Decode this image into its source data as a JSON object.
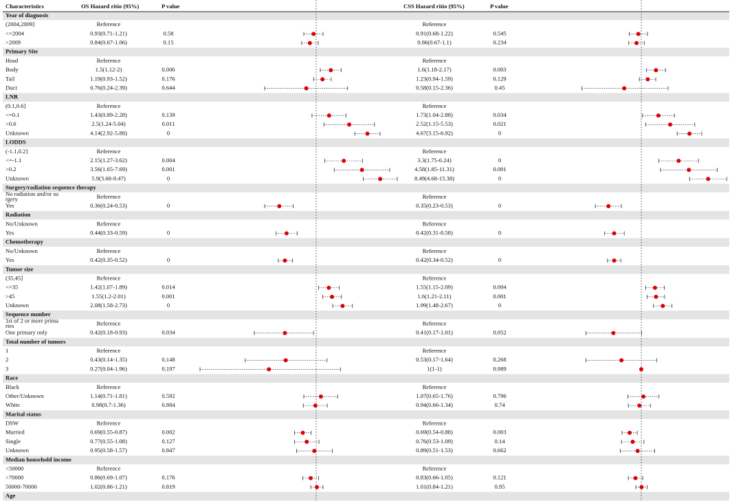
{
  "header": {
    "characteristics": "Characteristics",
    "os": "OS Hazard ritio (95%)",
    "os_p": "P value",
    "css": "CSS Hazard ritio (95%)",
    "css_p": "P value"
  },
  "plots": {
    "log_scale": true,
    "reference": 1,
    "point_color": "#e00000"
  },
  "rows": [
    {
      "section": "Year of diagnosis"
    },
    {
      "label": [
        "(2004,2009]"
      ],
      "os": {
        "text": "Reference"
      },
      "css": {
        "text": "Reference"
      }
    },
    {
      "label": [
        "<=2004"
      ],
      "os": {
        "text": "0.93(0.71-1.21)",
        "hr": 0.93,
        "lo": 0.71,
        "hi": 1.21,
        "p": 0.58
      },
      "css": {
        "text": "0.91(0.68-1.22)",
        "hr": 0.91,
        "lo": 0.68,
        "hi": 1.22,
        "p": 0.545
      }
    },
    {
      "label": [
        ">2009"
      ],
      "os": {
        "text": "0.84(0.67-1.06)",
        "hr": 0.84,
        "lo": 0.67,
        "hi": 1.06,
        "p": 0.15
      },
      "css": {
        "text": "0.86(0.67-1.1)",
        "hr": 0.86,
        "lo": 0.67,
        "hi": 1.1,
        "p": 0.234
      }
    },
    {
      "section": "Primary Site"
    },
    {
      "label": [
        "Head"
      ],
      "os": {
        "text": "Reference"
      },
      "css": {
        "text": "Reference"
      }
    },
    {
      "label": [
        "Body"
      ],
      "os": {
        "text": "1.5(1.12-2)",
        "hr": 1.5,
        "lo": 1.12,
        "hi": 2,
        "p": 0.006
      },
      "css": {
        "text": "1.6(1.18-2.17)",
        "hr": 1.6,
        "lo": 1.18,
        "hi": 2.17,
        "p": 0.003
      }
    },
    {
      "label": [
        "Tail"
      ],
      "os": {
        "text": "1.19(0.93-1.52)",
        "hr": 1.19,
        "lo": 0.93,
        "hi": 1.52,
        "p": 0.176
      },
      "css": {
        "text": "1.23(0.94-1.59)",
        "hr": 1.23,
        "lo": 0.94,
        "hi": 1.59,
        "p": 0.129
      }
    },
    {
      "label": [
        "Duct"
      ],
      "os": {
        "text": "0.76(0.24-2.39)",
        "hr": 0.76,
        "lo": 0.24,
        "hi": 2.39,
        "p": 0.644
      },
      "css": {
        "text": "0.58(0.15-2.36)",
        "hr": 0.58,
        "lo": 0.15,
        "hi": 2.36,
        "p": 0.45
      }
    },
    {
      "section": "LNR"
    },
    {
      "label": [
        "(0.1,0.6]"
      ],
      "os": {
        "text": "Reference"
      },
      "css": {
        "text": "Reference"
      }
    },
    {
      "label": [
        "<=0.1"
      ],
      "os": {
        "text": "1.43(0.89-2.28)",
        "hr": 1.43,
        "lo": 0.89,
        "hi": 2.28,
        "p": 0.139
      },
      "css": {
        "text": "1.73(1.04-2.88)",
        "hr": 1.73,
        "lo": 1.04,
        "hi": 2.88,
        "p": 0.034
      }
    },
    {
      "label": [
        ">0.6"
      ],
      "os": {
        "text": "2.5(1.24-5.04)",
        "hr": 2.5,
        "lo": 1.24,
        "hi": 5.04,
        "p": 0.011
      },
      "css": {
        "text": "2.52(1.15-5.53)",
        "hr": 2.52,
        "lo": 1.15,
        "hi": 5.53,
        "p": 0.021
      }
    },
    {
      "label": [
        "Unknown"
      ],
      "os": {
        "text": "4.14(2.92-5.88)",
        "hr": 4.14,
        "lo": 2.92,
        "hi": 5.88,
        "p": 0
      },
      "css": {
        "text": "4.67(3.15-6.92)",
        "hr": 4.67,
        "lo": 3.15,
        "hi": 6.92,
        "p": 0
      }
    },
    {
      "section": "LODDS"
    },
    {
      "label": [
        "(-1.1,0.2]"
      ],
      "os": {
        "text": "Reference"
      },
      "css": {
        "text": "Reference"
      }
    },
    {
      "label": [
        "<=-1.1"
      ],
      "os": {
        "text": "2.15(1.27-3.62)",
        "hr": 2.15,
        "lo": 1.27,
        "hi": 3.62,
        "p": 0.004
      },
      "css": {
        "text": "3.3(1.75-6.24)",
        "hr": 3.3,
        "lo": 1.75,
        "hi": 6.24,
        "p": 0
      }
    },
    {
      "label": [
        ">0.2"
      ],
      "os": {
        "text": "3.56(1.65-7.69)",
        "hr": 3.56,
        "lo": 1.65,
        "hi": 7.69,
        "p": 0.001
      },
      "css": {
        "text": "4.58(1.85-11.31)",
        "hr": 4.58,
        "lo": 1.85,
        "hi": 11.31,
        "p": 0.001
      }
    },
    {
      "label": [
        "Unknown"
      ],
      "os": {
        "text": "5.9(3.68-9.47)",
        "hr": 5.9,
        "lo": 3.68,
        "hi": 9.47,
        "p": 0
      },
      "css": {
        "text": "8.49(4.68-15.38)",
        "hr": 8.49,
        "lo": 4.68,
        "hi": 15.38,
        "p": 0
      }
    },
    {
      "section": "Surgery/radiation sequence therapy"
    },
    {
      "label": [
        "No radiation and/or su",
        "rgery"
      ],
      "os": {
        "text": "Reference"
      },
      "css": {
        "text": "Reference"
      }
    },
    {
      "label": [
        "Yes"
      ],
      "os": {
        "text": "0.36(0.24-0.53)",
        "hr": 0.36,
        "lo": 0.24,
        "hi": 0.53,
        "p": 0
      },
      "css": {
        "text": "0.35(0.23-0.53)",
        "hr": 0.35,
        "lo": 0.23,
        "hi": 0.53,
        "p": 0
      }
    },
    {
      "section": "Radiation"
    },
    {
      "label": [
        "No/Unknown"
      ],
      "os": {
        "text": "Reference"
      },
      "css": {
        "text": "Reference"
      }
    },
    {
      "label": [
        "Yes"
      ],
      "os": {
        "text": "0.44(0.33-0.59)",
        "hr": 0.44,
        "lo": 0.33,
        "hi": 0.59,
        "p": 0
      },
      "css": {
        "text": "0.42(0.31-0.58)",
        "hr": 0.42,
        "lo": 0.31,
        "hi": 0.58,
        "p": 0
      }
    },
    {
      "section": "Chemotherapy"
    },
    {
      "label": [
        "No/Unknown"
      ],
      "os": {
        "text": "Reference"
      },
      "css": {
        "text": "Reference"
      }
    },
    {
      "label": [
        "Yes"
      ],
      "os": {
        "text": "0.42(0.35-0.52)",
        "hr": 0.42,
        "lo": 0.35,
        "hi": 0.52,
        "p": 0
      },
      "css": {
        "text": "0.42(0.34-0.52)",
        "hr": 0.42,
        "lo": 0.34,
        "hi": 0.52,
        "p": 0
      }
    },
    {
      "section": "Tumor size"
    },
    {
      "label": [
        "(35,45]"
      ],
      "os": {
        "text": "Reference"
      },
      "css": {
        "text": "Reference"
      }
    },
    {
      "label": [
        "<=35"
      ],
      "os": {
        "text": "1.42(1.07-1.89)",
        "hr": 1.42,
        "lo": 1.07,
        "hi": 1.89,
        "p": 0.014
      },
      "css": {
        "text": "1.55(1.15-2.09)",
        "hr": 1.55,
        "lo": 1.15,
        "hi": 2.09,
        "p": 0.004
      }
    },
    {
      "label": [
        ">45"
      ],
      "os": {
        "text": "1.55(1.2-2.01)",
        "hr": 1.55,
        "lo": 1.2,
        "hi": 2.01,
        "p": 0.001
      },
      "css": {
        "text": "1.6(1.21-2.11)",
        "hr": 1.6,
        "lo": 1.21,
        "hi": 2.11,
        "p": 0.001
      }
    },
    {
      "label": [
        "Unknown"
      ],
      "os": {
        "text": "2.08(1.58-2.73)",
        "hr": 2.08,
        "lo": 1.58,
        "hi": 2.73,
        "p": 0
      },
      "css": {
        "text": "1.99(1.48-2.67)",
        "hr": 1.99,
        "lo": 1.48,
        "hi": 2.67,
        "p": 0
      }
    },
    {
      "section": "Sequence number"
    },
    {
      "label": [
        "1st of 2 or more prima",
        "ries"
      ],
      "os": {
        "text": "Reference"
      },
      "css": {
        "text": "Reference"
      }
    },
    {
      "label": [
        "One primary only"
      ],
      "os": {
        "text": "0.42(0.18-0.93)",
        "hr": 0.42,
        "lo": 0.18,
        "hi": 0.93,
        "p": 0.034
      },
      "css": {
        "text": "0.41(0.17-1.01)",
        "hr": 0.41,
        "lo": 0.17,
        "hi": 1.01,
        "p": 0.052
      }
    },
    {
      "section": "Total number of tumors"
    },
    {
      "label": [
        "1"
      ],
      "os": {
        "text": "Reference"
      },
      "css": {
        "text": "Reference"
      }
    },
    {
      "label": [
        "2"
      ],
      "os": {
        "text": "0.43(0.14-1.35)",
        "hr": 0.43,
        "lo": 0.14,
        "hi": 1.35,
        "p": 0.148
      },
      "css": {
        "text": "0.53(0.17-1.64)",
        "hr": 0.53,
        "lo": 0.17,
        "hi": 1.64,
        "p": 0.268
      }
    },
    {
      "label": [
        "3"
      ],
      "os": {
        "text": "0.27(0.04-1.96)",
        "hr": 0.27,
        "lo": 0.04,
        "hi": 1.96,
        "p": 0.197
      },
      "css": {
        "text": "1(1-1)",
        "hr": 1,
        "lo": 1,
        "hi": 1,
        "p": 0.989
      }
    },
    {
      "section": "Race"
    },
    {
      "label": [
        "Black"
      ],
      "os": {
        "text": "Reference"
      },
      "css": {
        "text": "Reference"
      }
    },
    {
      "label": [
        "Other/Unknown"
      ],
      "os": {
        "text": "1.14(0.71-1.81)",
        "hr": 1.14,
        "lo": 0.71,
        "hi": 1.81,
        "p": 0.592
      },
      "css": {
        "text": "1.07(0.65-1.76)",
        "hr": 1.07,
        "lo": 0.65,
        "hi": 1.76,
        "p": 0.796
      }
    },
    {
      "label": [
        "White"
      ],
      "os": {
        "text": "0.98(0.7-1.36)",
        "hr": 0.98,
        "lo": 0.7,
        "hi": 1.36,
        "p": 0.884
      },
      "css": {
        "text": "0.94(0.66-1.34)",
        "hr": 0.94,
        "lo": 0.66,
        "hi": 1.34,
        "p": 0.74
      }
    },
    {
      "section": "Marital status"
    },
    {
      "label": [
        "DSW"
      ],
      "os": {
        "text": "Reference"
      },
      "css": {
        "text": "Reference"
      }
    },
    {
      "label": [
        "Married"
      ],
      "os": {
        "text": "0.69(0.55-0.87)",
        "hr": 0.69,
        "lo": 0.55,
        "hi": 0.87,
        "p": 0.002
      },
      "css": {
        "text": "0.69(0.54-0.88)",
        "hr": 0.69,
        "lo": 0.54,
        "hi": 0.88,
        "p": 0.003
      }
    },
    {
      "label": [
        "Single"
      ],
      "os": {
        "text": "0.77(0.55-1.08)",
        "hr": 0.77,
        "lo": 0.55,
        "hi": 1.08,
        "p": 0.127
      },
      "css": {
        "text": "0.76(0.53-1.09)",
        "hr": 0.76,
        "lo": 0.53,
        "hi": 1.09,
        "p": 0.14
      }
    },
    {
      "label": [
        "Unknown"
      ],
      "os": {
        "text": "0.95(0.58-1.57)",
        "hr": 0.95,
        "lo": 0.58,
        "hi": 1.57,
        "p": 0.847
      },
      "css": {
        "text": "0.89(0.51-1.53)",
        "hr": 0.89,
        "lo": 0.51,
        "hi": 1.53,
        "p": 0.662
      }
    },
    {
      "section": "Median household income"
    },
    {
      "label": [
        "<50000"
      ],
      "os": {
        "text": "Reference"
      },
      "css": {
        "text": "Reference"
      }
    },
    {
      "label": [
        ">70000"
      ],
      "os": {
        "text": "0.86(0.69-1.07)",
        "hr": 0.86,
        "lo": 0.69,
        "hi": 1.07,
        "p": 0.176
      },
      "css": {
        "text": "0.83(0.66-1.05)",
        "hr": 0.83,
        "lo": 0.66,
        "hi": 1.05,
        "p": 0.121
      }
    },
    {
      "label": [
        "50000-70000"
      ],
      "os": {
        "text": "1.02(0.86-1.21)",
        "hr": 1.02,
        "lo": 0.86,
        "hi": 1.21,
        "p": 0.819
      },
      "css": {
        "text": "1.01(0.84-1.21)",
        "hr": 1.01,
        "lo": 0.84,
        "hi": 1.21,
        "p": 0.95
      }
    },
    {
      "section": "Age"
    }
  ]
}
